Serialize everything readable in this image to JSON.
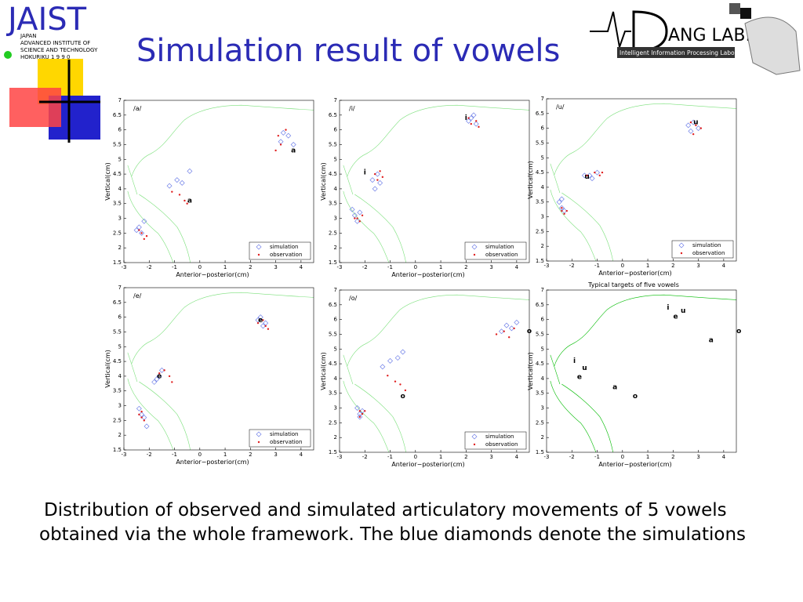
{
  "header": {
    "title": "Simulation result of vowels",
    "jaist": "JAIST",
    "jaist_sub": [
      "JAPAN",
      "ADVANCED INSTITUTE OF",
      "SCIENCE AND TECHNOLOGY",
      "HOKURIKU 1 9 9 0"
    ],
    "lab": "ANG LAB.",
    "lab_sub": "Intelligent Information Processing Laboratory"
  },
  "caption": "Distribution of observed and simulated articulatory movements of 5 vowels obtained via the whole framework. The blue diamonds denote the simulations",
  "chart_data": [
    {
      "type": "scatter",
      "title": "/a/",
      "xlabel": "Anterior−posterior(cm)",
      "ylabel": "Vertical(cm)",
      "xlim": [
        -3,
        4.5
      ],
      "ylim": [
        1.5,
        7
      ],
      "xticks": [
        -3,
        -2,
        -1,
        0,
        1,
        2,
        3,
        4
      ],
      "yticks": [
        1.5,
        2,
        2.5,
        3,
        3.5,
        4,
        4.5,
        5,
        5.5,
        6,
        6.5,
        7
      ],
      "legend": "lower right",
      "series": [
        {
          "name": "simulation",
          "color": "#7080e8",
          "x": [
            -2.4,
            -2.3,
            -2.2,
            -2.5,
            -1.2,
            -0.9,
            -0.7,
            -0.4,
            3.2,
            3.5,
            3.7,
            3.3
          ],
          "values": [
            2.7,
            2.5,
            2.9,
            2.6,
            4.1,
            4.3,
            4.2,
            4.6,
            5.6,
            5.8,
            5.5,
            5.9
          ]
        },
        {
          "name": "observation",
          "color": "#e02020",
          "x": [
            -2.3,
            -2.4,
            -2.2,
            -2.1,
            -1.1,
            -0.8,
            -0.6,
            -0.5,
            3.0,
            3.2,
            3.4,
            3.1
          ],
          "values": [
            2.5,
            2.6,
            2.3,
            2.4,
            3.9,
            3.8,
            3.6,
            3.5,
            5.3,
            5.5,
            6.0,
            5.8
          ]
        }
      ],
      "annotations": [
        {
          "text": "a",
          "x": 3.7,
          "y": 5.3
        },
        {
          "text": "a",
          "x": -0.4,
          "y": 3.6
        }
      ]
    },
    {
      "type": "scatter",
      "title": "/i/",
      "xlabel": "Anterior−posterior(cm)",
      "ylabel": "Vertical(cm)",
      "xlim": [
        -3,
        4.5
      ],
      "ylim": [
        1.5,
        7
      ],
      "xticks": [
        -3,
        -2,
        -1,
        0,
        1,
        2,
        3,
        4
      ],
      "yticks": [
        1.5,
        2,
        2.5,
        3,
        3.5,
        4,
        4.5,
        5,
        5.5,
        6,
        6.5,
        7
      ],
      "legend": "lower right",
      "series": [
        {
          "name": "simulation",
          "color": "#7080e8",
          "x": [
            -2.4,
            -2.3,
            -2.2,
            -2.5,
            -1.7,
            -1.5,
            -1.4,
            -1.6,
            2.1,
            2.2,
            2.4,
            2.3
          ],
          "values": [
            3.1,
            2.9,
            3.2,
            3.3,
            4.3,
            4.5,
            4.2,
            4.0,
            6.3,
            6.4,
            6.2,
            6.5
          ]
        },
        {
          "name": "observation",
          "color": "#e02020",
          "x": [
            -2.3,
            -2.2,
            -2.1,
            -2.4,
            -1.6,
            -1.4,
            -1.3,
            -1.5,
            2.2,
            2.4,
            2.5,
            2.1
          ],
          "values": [
            3.0,
            2.9,
            3.1,
            3.0,
            4.5,
            4.6,
            4.4,
            4.3,
            6.2,
            6.3,
            6.1,
            6.4
          ]
        }
      ],
      "annotations": [
        {
          "text": "i",
          "x": -2.0,
          "y": 4.55
        },
        {
          "text": "i",
          "x": 2.0,
          "y": 6.4
        }
      ]
    },
    {
      "type": "scatter",
      "title": "/u/",
      "xlabel": "Anterior−posterior(cm)",
      "ylabel": "Vertical(cm)",
      "xlim": [
        -3,
        4.5
      ],
      "ylim": [
        1.5,
        7
      ],
      "xticks": [
        -3,
        -2,
        -1,
        0,
        1,
        2,
        3,
        4
      ],
      "yticks": [
        1.5,
        2,
        2.5,
        3,
        3.5,
        4,
        4.5,
        5,
        5.5,
        6,
        6.5,
        7
      ],
      "legend": "lower right",
      "series": [
        {
          "name": "simulation",
          "color": "#7080e8",
          "x": [
            -2.5,
            -2.4,
            -2.3,
            -2.4,
            -1.5,
            -1.2,
            -1.0,
            -1.3,
            2.6,
            2.8,
            3.0,
            2.7
          ],
          "values": [
            3.5,
            3.3,
            3.2,
            3.6,
            4.4,
            4.3,
            4.5,
            4.4,
            6.1,
            6.2,
            6.0,
            5.9
          ]
        },
        {
          "name": "observation",
          "color": "#e02020",
          "x": [
            -2.4,
            -2.3,
            -2.2,
            -2.4,
            -1.4,
            -1.1,
            -0.9,
            -0.8,
            2.7,
            2.9,
            3.1,
            2.8
          ],
          "values": [
            3.2,
            3.1,
            3.2,
            3.3,
            4.4,
            4.5,
            4.4,
            4.5,
            6.2,
            6.1,
            6.0,
            5.8
          ]
        }
      ],
      "annotations": [
        {
          "text": "u",
          "x": -1.4,
          "y": 4.35
        },
        {
          "text": "u",
          "x": 2.9,
          "y": 6.2
        }
      ]
    },
    {
      "type": "scatter",
      "title": "/e/",
      "xlabel": "Anterior−posterior(cm)",
      "ylabel": "Vertical(cm)",
      "xlim": [
        -3,
        4.5
      ],
      "ylim": [
        1.5,
        7
      ],
      "xticks": [
        -3,
        -2,
        -1,
        0,
        1,
        2,
        3,
        4
      ],
      "yticks": [
        1.5,
        2,
        2.5,
        3,
        3.5,
        4,
        4.5,
        5,
        5.5,
        6,
        6.5,
        7
      ],
      "legend": "lower right",
      "series": [
        {
          "name": "simulation",
          "color": "#7080e8",
          "x": [
            -2.4,
            -2.3,
            -2.2,
            -2.1,
            -1.8,
            -1.6,
            -1.5,
            -1.7,
            2.3,
            2.4,
            2.6,
            2.5
          ],
          "values": [
            2.9,
            2.7,
            2.6,
            2.3,
            3.8,
            4.0,
            4.2,
            3.9,
            5.9,
            6.0,
            5.8,
            5.7
          ]
        },
        {
          "name": "observation",
          "color": "#e02020",
          "x": [
            -2.4,
            -2.3,
            -2.2,
            -2.3,
            -1.6,
            -1.4,
            -1.2,
            -1.1,
            2.3,
            2.5,
            2.7,
            2.6
          ],
          "values": [
            2.7,
            2.6,
            2.5,
            2.8,
            4.1,
            4.2,
            4.0,
            3.8,
            5.8,
            5.9,
            5.6,
            5.7
          ]
        }
      ],
      "annotations": [
        {
          "text": "e",
          "x": -1.6,
          "y": 4.0
        },
        {
          "text": "e",
          "x": 2.4,
          "y": 5.9
        }
      ]
    },
    {
      "type": "scatter",
      "title": "/o/",
      "xlabel": "Anterior−posterior(cm)",
      "ylabel": "Vertical(cm)",
      "xlim": [
        -3,
        4.5
      ],
      "ylim": [
        1.5,
        7
      ],
      "xticks": [
        -3,
        -2,
        -1,
        0,
        1,
        2,
        3,
        4
      ],
      "yticks": [
        1.5,
        2,
        2.5,
        3,
        3.5,
        4,
        4.5,
        5,
        5.5,
        6,
        6.5,
        7
      ],
      "legend": "lower right",
      "series": [
        {
          "name": "simulation",
          "color": "#7080e8",
          "x": [
            -2.3,
            -2.2,
            -2.1,
            -2.2,
            -1.3,
            -1.0,
            -0.7,
            -0.5,
            3.4,
            3.6,
            3.8,
            4.0
          ],
          "values": [
            3.0,
            2.8,
            2.9,
            2.7,
            4.4,
            4.6,
            4.7,
            4.9,
            5.6,
            5.8,
            5.7,
            5.9
          ]
        },
        {
          "name": "observation",
          "color": "#e02020",
          "x": [
            -2.2,
            -2.1,
            -2.2,
            -2.0,
            -1.1,
            -0.8,
            -0.6,
            -0.4,
            3.2,
            3.5,
            3.7,
            3.9
          ],
          "values": [
            2.9,
            2.8,
            2.7,
            2.9,
            4.1,
            3.9,
            3.8,
            3.6,
            5.5,
            5.6,
            5.4,
            5.7
          ]
        }
      ],
      "annotations": [
        {
          "text": "o",
          "x": 4.5,
          "y": 5.6
        },
        {
          "text": "o",
          "x": -0.5,
          "y": 3.4
        }
      ]
    },
    {
      "type": "scatter",
      "title": "Typical targets of five vowels",
      "xlabel": "Anterior−posterior(cm)",
      "ylabel": "Vertical(cm)",
      "xlim": [
        -3,
        4.5
      ],
      "ylim": [
        1.5,
        7
      ],
      "xticks": [
        -3,
        -2,
        -1,
        0,
        1,
        2,
        3,
        4
      ],
      "yticks": [
        1.5,
        2,
        2.5,
        3,
        3.5,
        4,
        4.5,
        5,
        5.5,
        6,
        6.5,
        7
      ],
      "series": [],
      "annotations": [
        {
          "text": "i",
          "x": 1.8,
          "y": 6.4
        },
        {
          "text": "e",
          "x": 2.1,
          "y": 6.1
        },
        {
          "text": "u",
          "x": 2.4,
          "y": 6.3
        },
        {
          "text": "a",
          "x": 3.5,
          "y": 5.3
        },
        {
          "text": "o",
          "x": 4.6,
          "y": 5.6
        },
        {
          "text": "i",
          "x": -1.9,
          "y": 4.6
        },
        {
          "text": "u",
          "x": -1.5,
          "y": 4.35
        },
        {
          "text": "e",
          "x": -1.7,
          "y": 4.05
        },
        {
          "text": "a",
          "x": -0.3,
          "y": 3.7
        },
        {
          "text": "o",
          "x": 0.5,
          "y": 3.4
        }
      ]
    }
  ]
}
